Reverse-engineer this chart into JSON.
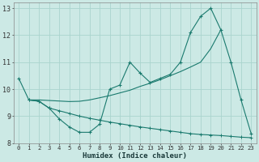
{
  "xlabel": "Humidex (Indice chaleur)",
  "background_color": "#cce9e5",
  "grid_color": "#aad4ce",
  "line_color": "#1a7a6e",
  "xlim": [
    -0.5,
    23.5
  ],
  "ylim": [
    8.0,
    13.2
  ],
  "yticks": [
    8,
    9,
    10,
    11,
    12,
    13
  ],
  "xtick_labels": [
    "0",
    "1",
    "2",
    "3",
    "4",
    "5",
    "6",
    "7",
    "8",
    "9",
    "10",
    "11",
    "12",
    "13",
    "14",
    "15",
    "16",
    "17",
    "18",
    "19",
    "20",
    "21",
    "22",
    "23"
  ],
  "line1_x": [
    0,
    1,
    2,
    3,
    4,
    5,
    6,
    7,
    8,
    9,
    10,
    11,
    12,
    13,
    14,
    15,
    16,
    17,
    18,
    19,
    20,
    21,
    22,
    23
  ],
  "line1_y": [
    10.4,
    9.6,
    9.55,
    9.3,
    8.9,
    8.6,
    8.4,
    8.4,
    8.7,
    10.0,
    10.15,
    11.0,
    10.6,
    10.25,
    10.4,
    10.55,
    11.0,
    12.1,
    12.7,
    13.0,
    12.2,
    11.0,
    9.6,
    8.35
  ],
  "line2_x": [
    1,
    2,
    3,
    4,
    5,
    6,
    7,
    8,
    9,
    10,
    11,
    12,
    13,
    14,
    15,
    16,
    17,
    18,
    19,
    20,
    21,
    22,
    23
  ],
  "line2_y": [
    9.6,
    9.55,
    9.3,
    9.2,
    9.1,
    9.0,
    8.92,
    8.85,
    8.78,
    8.72,
    8.66,
    8.6,
    8.55,
    8.5,
    8.45,
    8.4,
    8.35,
    8.32,
    8.3,
    8.28,
    8.25,
    8.22,
    8.2
  ],
  "line3_x": [
    1,
    2,
    3,
    4,
    5,
    6,
    7,
    8,
    9,
    10,
    11,
    12,
    13,
    14,
    15,
    16,
    17,
    18,
    19,
    20
  ],
  "line3_y": [
    9.6,
    9.6,
    9.58,
    9.56,
    9.54,
    9.55,
    9.6,
    9.68,
    9.76,
    9.86,
    9.96,
    10.1,
    10.22,
    10.35,
    10.5,
    10.65,
    10.82,
    11.0,
    11.5,
    12.2
  ]
}
